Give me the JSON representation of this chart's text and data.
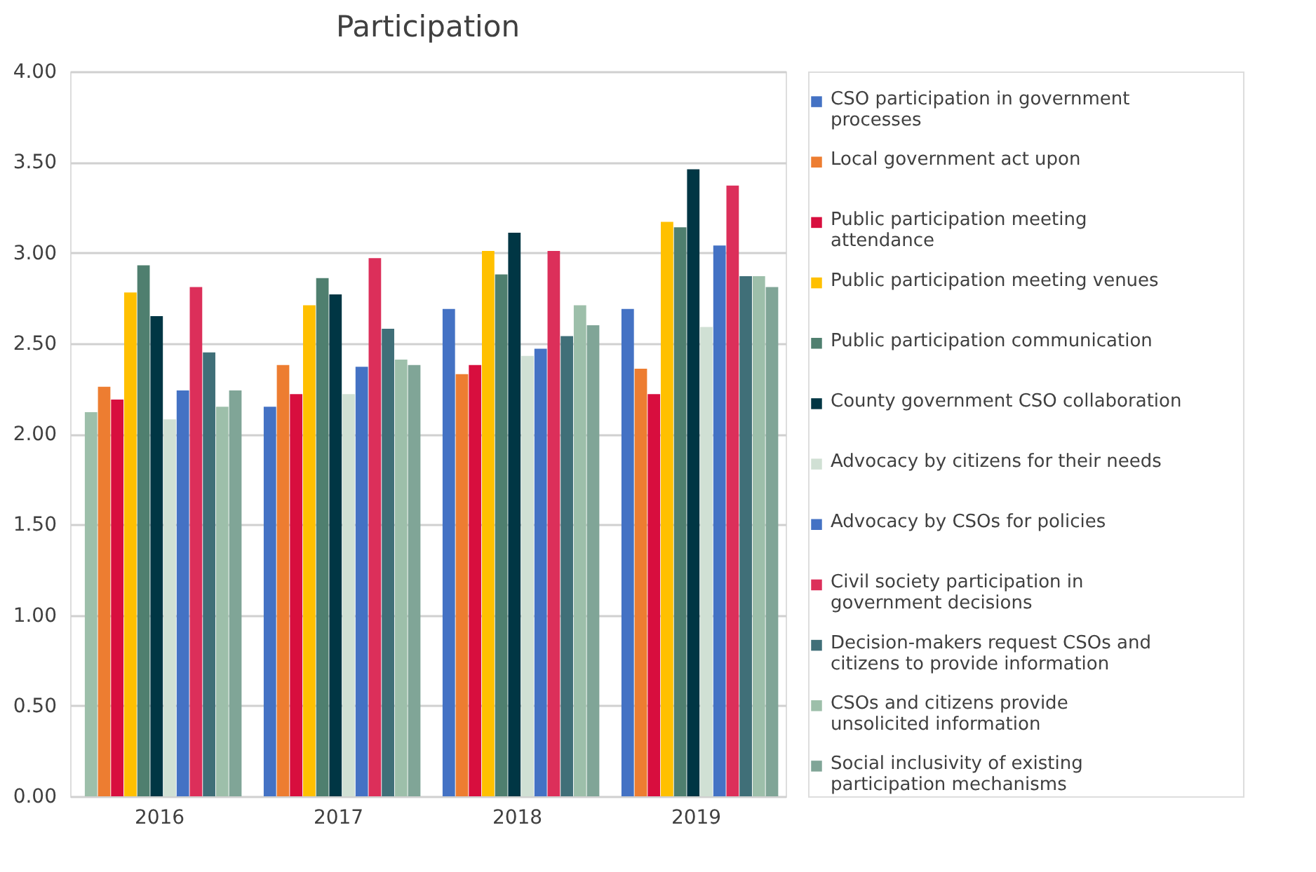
{
  "chart_data": {
    "type": "bar",
    "title": "Participation",
    "categories": [
      "2016",
      "2017",
      "2018",
      "2019"
    ],
    "series": [
      {
        "name": "CSO participation in government processes",
        "color": "#4472c4",
        "colors": [
          "#9dbfaa",
          "#4472c4",
          "#4472c4",
          "#4472c4"
        ],
        "values": [
          2.12,
          2.15,
          2.69,
          2.69
        ]
      },
      {
        "name": "Local government act upon",
        "color": "#ed7d31",
        "values": [
          2.26,
          2.38,
          2.33,
          2.36
        ]
      },
      {
        "name": "Public participation meeting attendance",
        "color": "#d80e3e",
        "values": [
          2.19,
          2.22,
          2.38,
          2.22
        ]
      },
      {
        "name": "Public participation meeting venues",
        "color": "#ffc000",
        "values": [
          2.78,
          2.71,
          3.01,
          3.17
        ]
      },
      {
        "name": "Public participation communication",
        "color": "#4f7f6f",
        "values": [
          2.93,
          2.86,
          2.88,
          3.14
        ]
      },
      {
        "name": "County government CSO collaboration",
        "color": "#003644",
        "values": [
          2.65,
          2.77,
          3.11,
          3.46
        ]
      },
      {
        "name": "Advocacy by citizens for their needs",
        "color": "#d0e0d4",
        "values": [
          2.08,
          2.22,
          2.43,
          2.59
        ]
      },
      {
        "name": "Advocacy by CSOs for policies",
        "color": "#4472c4",
        "values": [
          2.24,
          2.37,
          2.47,
          3.04
        ]
      },
      {
        "name": "Civil society participation in government decisions",
        "color": "#dc2f5a",
        "values": [
          2.81,
          2.97,
          3.01,
          3.37
        ]
      },
      {
        "name": "Decision-makers request CSOs and citizens to provide information",
        "color": "#406f78",
        "values": [
          2.45,
          2.58,
          2.54,
          2.87
        ]
      },
      {
        "name": "CSOs and citizens provide unsolicited information",
        "color": "#9dbfaa",
        "values": [
          2.15,
          2.41,
          2.71,
          2.87
        ]
      },
      {
        "name": "Social inclusivity of existing participation mechanisms",
        "color": "#80a597",
        "values": [
          2.24,
          2.38,
          2.6,
          2.81
        ]
      }
    ],
    "ylim": [
      0,
      4
    ],
    "yticks": [
      {
        "value": 0,
        "label": "0.00"
      },
      {
        "value": 0.5,
        "label": "0.50"
      },
      {
        "value": 1,
        "label": "1.00"
      },
      {
        "value": 1.5,
        "label": "1.50"
      },
      {
        "value": 2,
        "label": "2.00"
      },
      {
        "value": 2.5,
        "label": "2.50"
      },
      {
        "value": 3,
        "label": "3.00"
      },
      {
        "value": 3.5,
        "label": "3.50"
      },
      {
        "value": 4,
        "label": "4.00"
      }
    ],
    "grid": "y",
    "legend": "right"
  }
}
